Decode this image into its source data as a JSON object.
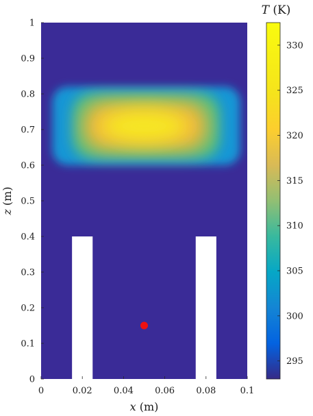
{
  "chart_data": {
    "type": "heatmap",
    "title": "",
    "xlabel_var": "x",
    "xlabel_unit": "(m)",
    "ylabel_var": "z",
    "ylabel_unit": "(m)",
    "xlim": [
      0,
      0.1
    ],
    "ylim": [
      0,
      1
    ],
    "x_ticks": [
      {
        "value": 0,
        "label": "0"
      },
      {
        "value": 0.02,
        "label": "0.02"
      },
      {
        "value": 0.04,
        "label": "0.04"
      },
      {
        "value": 0.06,
        "label": "0.06"
      },
      {
        "value": 0.08,
        "label": "0.08"
      },
      {
        "value": 0.1,
        "label": "0.1"
      }
    ],
    "y_ticks": [
      {
        "value": 0,
        "label": "0"
      },
      {
        "value": 0.1,
        "label": "0.1"
      },
      {
        "value": 0.2,
        "label": "0.2"
      },
      {
        "value": 0.3,
        "label": "0.3"
      },
      {
        "value": 0.4,
        "label": "0.4"
      },
      {
        "value": 0.5,
        "label": "0.5"
      },
      {
        "value": 0.6,
        "label": "0.6"
      },
      {
        "value": 0.7,
        "label": "0.7"
      },
      {
        "value": 0.8,
        "label": "0.8"
      },
      {
        "value": 0.9,
        "label": "0.9"
      },
      {
        "value": 1,
        "label": "1"
      }
    ],
    "colorbar": {
      "label_var": "T",
      "label_unit": "(K)",
      "range": [
        293,
        332.5
      ],
      "ticks": [
        {
          "value": 295,
          "label": "295"
        },
        {
          "value": 300,
          "label": "300"
        },
        {
          "value": 305,
          "label": "305"
        },
        {
          "value": 310,
          "label": "310"
        },
        {
          "value": 315,
          "label": "315"
        },
        {
          "value": 320,
          "label": "320"
        },
        {
          "value": 325,
          "label": "325"
        },
        {
          "value": 330,
          "label": "330"
        }
      ],
      "colormap": "parula"
    },
    "field": {
      "background_K": 293,
      "hot_zone_center": [
        0.05,
        0.71
      ],
      "outer_extent": {
        "x": [
          0.0055,
          0.0965
        ],
        "z": [
          0.6,
          0.82
        ]
      },
      "inner_extent": {
        "x": [
          0.02,
          0.081
        ],
        "z": [
          0.64,
          0.78
        ]
      },
      "peak_K": 332
    },
    "obstacles": [
      {
        "x": [
          0.015,
          0.025
        ],
        "z": [
          0,
          0.4
        ],
        "fill": "#ffffff"
      },
      {
        "x": [
          0.075,
          0.085
        ],
        "z": [
          0,
          0.4
        ],
        "fill": "#ffffff"
      }
    ],
    "marker": {
      "x": 0.05,
      "z": 0.15,
      "color": "#ee1111"
    }
  }
}
